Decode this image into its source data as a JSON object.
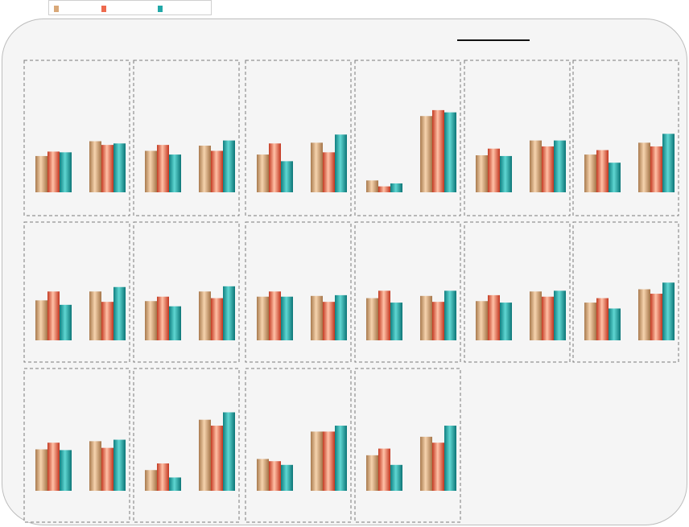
{
  "chart_data": {
    "type": "bar",
    "layout": "small-multiples",
    "title": "",
    "grid": false,
    "legend_position": "top-left",
    "series": [
      {
        "name": "",
        "color": "#d9a878"
      },
      {
        "name": "",
        "color": "#ee6a4e"
      },
      {
        "name": "",
        "color": "#22a8a8"
      }
    ],
    "panels": [
      {
        "groups": [
          [
            49,
            55,
            54
          ],
          [
            69,
            64,
            66
          ]
        ]
      },
      {
        "groups": [
          [
            56,
            64,
            51
          ],
          [
            63,
            56,
            70
          ]
        ]
      },
      {
        "groups": [
          [
            51,
            66,
            42
          ],
          [
            67,
            54,
            78
          ]
        ]
      },
      {
        "groups": [
          [
            16,
            8,
            12
          ],
          [
            103,
            111,
            108
          ]
        ]
      },
      {
        "groups": [
          [
            50,
            59,
            49
          ],
          [
            70,
            62,
            70
          ]
        ]
      },
      {
        "groups": [
          [
            51,
            57,
            40
          ],
          [
            67,
            62,
            79
          ]
        ]
      },
      {
        "groups": [
          [
            54,
            66,
            48
          ],
          [
            66,
            52,
            72
          ]
        ]
      },
      {
        "groups": [
          [
            53,
            59,
            46
          ],
          [
            66,
            57,
            73
          ]
        ]
      },
      {
        "groups": [
          [
            59,
            66,
            59
          ],
          [
            60,
            52,
            61
          ]
        ]
      },
      {
        "groups": [
          [
            57,
            67,
            51
          ],
          [
            60,
            52,
            67
          ]
        ]
      },
      {
        "groups": [
          [
            53,
            61,
            51
          ],
          [
            66,
            59,
            67
          ]
        ]
      },
      {
        "groups": [
          [
            51,
            57,
            43
          ],
          [
            69,
            63,
            78
          ]
        ]
      },
      {
        "groups": [
          [
            56,
            65,
            55
          ],
          [
            67,
            58,
            69
          ]
        ]
      },
      {
        "groups": [
          [
            28,
            37,
            18
          ],
          [
            96,
            88,
            106
          ]
        ]
      },
      {
        "groups": [
          [
            43,
            40,
            35
          ],
          [
            80,
            80,
            88
          ]
        ]
      },
      {
        "groups": [
          [
            48,
            57,
            35
          ],
          [
            73,
            65,
            88
          ]
        ]
      }
    ],
    "ylim": [
      0,
      115
    ]
  }
}
